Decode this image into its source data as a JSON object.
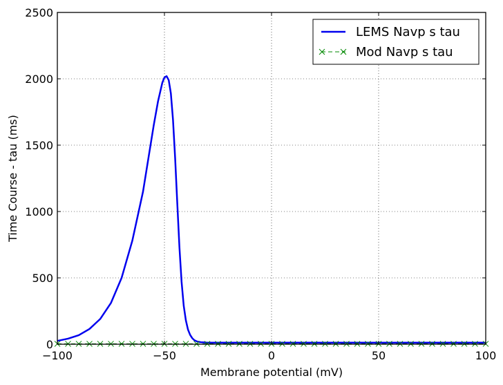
{
  "chart_data": {
    "type": "line",
    "xlabel": "Membrane potential (mV)",
    "ylabel": "Time Course - tau (ms)",
    "xlim": [
      -100,
      100
    ],
    "ylim": [
      0,
      2500
    ],
    "xticks": [
      -100,
      -50,
      0,
      50,
      100
    ],
    "xtick_labels": [
      "−100",
      "−50",
      "0",
      "50",
      "100"
    ],
    "yticks": [
      0,
      500,
      1000,
      1500,
      2000,
      2500
    ],
    "ytick_labels": [
      "0",
      "500",
      "1000",
      "1500",
      "2000",
      "2500"
    ],
    "grid": true,
    "legend_position": "top-right",
    "series": [
      {
        "name": "LEMS Navp s tau",
        "color": "#0000ee",
        "style": "solid",
        "x": [
          -100,
          -95,
          -90,
          -85,
          -80,
          -75,
          -70,
          -65,
          -60,
          -57,
          -55,
          -53,
          -51,
          -50,
          -49,
          -48,
          -47,
          -46,
          -45,
          -44,
          -43,
          -42,
          -41,
          -40,
          -39,
          -38,
          -37,
          -36,
          -35,
          -34,
          -33,
          -32,
          -31,
          -30,
          -29,
          -20,
          0,
          50,
          100
        ],
        "y": [
          25,
          42,
          68,
          115,
          190,
          310,
          500,
          780,
          1150,
          1450,
          1650,
          1830,
          1970,
          2010,
          2020,
          1990,
          1890,
          1690,
          1400,
          1060,
          730,
          470,
          290,
          180,
          110,
          70,
          45,
          30,
          22,
          18,
          15,
          14,
          13,
          12,
          12,
          12,
          12,
          12,
          12
        ]
      },
      {
        "name": "Mod Navp s tau",
        "color": "#008800",
        "style": "dashed-x",
        "x": [
          -100,
          -95,
          -90,
          -85,
          -80,
          -75,
          -70,
          -65,
          -60,
          -55,
          -50,
          -45,
          -40,
          -35,
          -30,
          -25,
          -20,
          -15,
          -10,
          -5,
          0,
          5,
          10,
          15,
          20,
          25,
          30,
          35,
          40,
          45,
          50,
          55,
          60,
          65,
          70,
          75,
          80,
          85,
          90,
          95,
          100
        ],
        "y": [
          3,
          3,
          3,
          3,
          3,
          3,
          3,
          3,
          3,
          3,
          3,
          3,
          3,
          3,
          3,
          3,
          3,
          3,
          3,
          3,
          3,
          3,
          3,
          3,
          3,
          3,
          3,
          3,
          3,
          3,
          3,
          3,
          3,
          3,
          3,
          3,
          3,
          3,
          3,
          3,
          3
        ]
      }
    ]
  }
}
